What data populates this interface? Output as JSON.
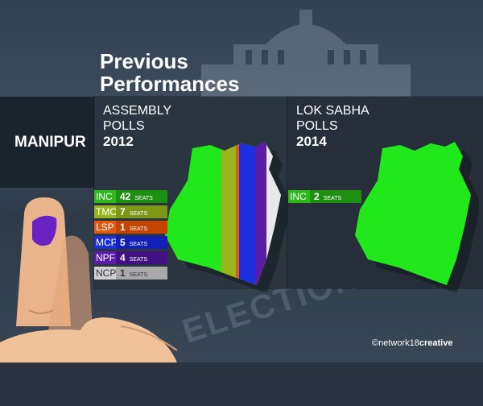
{
  "title": {
    "line1": "Previous",
    "line2": "Performances"
  },
  "state": "MANIPUR",
  "assembly": {
    "line1": "ASSEMBLY",
    "line2": "POLLS",
    "year": "2012",
    "seats_unit": "SEATS",
    "unit_one": "SEAT",
    "parties": [
      {
        "code": "INC",
        "seats": "42",
        "unit": "SEATS",
        "color": "#2db81b",
        "bar": "#1f8f12"
      },
      {
        "code": "TMC",
        "seats": "7",
        "unit": "SEATS",
        "color": "#98b51b",
        "bar": "#7e9714"
      },
      {
        "code": "LSP",
        "seats": "1",
        "unit": "SEATS",
        "color": "#e05a12",
        "bar": "#c54400"
      },
      {
        "code": "MCP",
        "seats": "5",
        "unit": "SEATS",
        "color": "#1b2ee0",
        "bar": "#1320b8"
      },
      {
        "code": "NPF",
        "seats": "4",
        "unit": "SEATS",
        "color": "#5b1ca8",
        "bar": "#421080"
      },
      {
        "code": "NCP",
        "seats": "1",
        "unit": "SEATS",
        "color": "#d0d0d0",
        "bar": "#a9a9a9"
      }
    ]
  },
  "loksabha": {
    "line1": "LOK SABHA",
    "line2": "POLLS",
    "year": "2014",
    "parties": [
      {
        "code": "INC",
        "seats": "2",
        "unit": "SEATS",
        "color": "#2db81b",
        "bar": "#1f8f12"
      }
    ]
  },
  "credit": {
    "prefix": "©network18",
    "bold": "creative"
  },
  "colors": {
    "map_green": "#21e81a",
    "band": "#1b232c"
  }
}
